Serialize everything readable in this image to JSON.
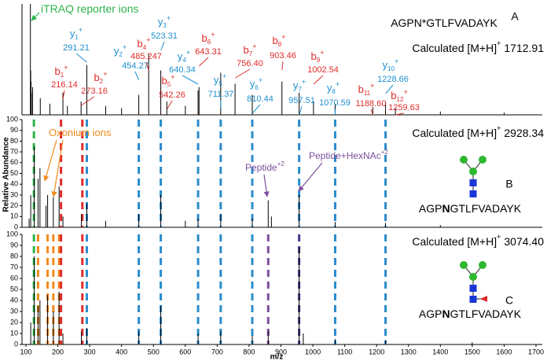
{
  "chart_data": [
    {
      "type": "spectrum",
      "panel_label": "A",
      "color": "#000000",
      "xlim": [
        100,
        1700
      ],
      "ylim": [
        0,
        100
      ],
      "x": [
        114,
        115,
        116,
        117,
        121,
        145,
        175,
        216,
        230,
        273,
        291,
        350,
        400,
        454,
        485,
        523,
        542,
        600,
        640,
        643,
        711,
        756,
        810,
        903,
        957,
        1002,
        1070,
        1188,
        1228,
        1259,
        1400,
        1600
      ],
      "values": [
        100,
        40,
        30,
        20,
        25,
        15,
        10,
        20,
        8,
        12,
        45,
        8,
        6,
        18,
        55,
        40,
        12,
        8,
        22,
        25,
        38,
        28,
        18,
        30,
        20,
        12,
        10,
        7,
        12,
        6,
        3,
        2
      ],
      "sequence": [
        "AGPN*GTLFVADAYK"
      ],
      "calculated": {
        "label": "Calculated [M+H]",
        "charge": "+",
        "mass": 1712.91
      },
      "annotations": [
        {
          "text": "iTRAQ reporter ions",
          "color": "#2db34a"
        }
      ],
      "ions": [
        {
          "ion": "b",
          "sub": "1",
          "sup": "+",
          "mz": 216.14,
          "color": "#e02a2a"
        },
        {
          "ion": "y",
          "sub": "1",
          "sup": "+",
          "mz": 291.21,
          "color": "#1e8fd0"
        },
        {
          "ion": "b",
          "sub": "2",
          "sup": "+",
          "mz": 273.16,
          "color": "#e02a2a"
        },
        {
          "ion": "y",
          "sub": "2",
          "sup": "+",
          "mz": 454.27,
          "color": "#1e8fd0"
        },
        {
          "ion": "b",
          "sub": "4",
          "sup": "+",
          "mz": 485.247,
          "color": "#e02a2a"
        },
        {
          "ion": "y",
          "sub": "3",
          "sup": "+",
          "mz": 523.31,
          "color": "#1e8fd0"
        },
        {
          "ion": "b",
          "sub": "5",
          "sup": "+",
          "mz": 542.26,
          "color": "#e02a2a"
        },
        {
          "ion": "y",
          "sub": "4",
          "sup": "+",
          "mz": 640.34,
          "color": "#1e8fd0"
        },
        {
          "ion": "b",
          "sub": "6",
          "sup": "+",
          "mz": 643.31,
          "color": "#e02a2a"
        },
        {
          "ion": "y",
          "sub": "5",
          "sup": "+",
          "mz": 711.37,
          "color": "#1e8fd0"
        },
        {
          "ion": "b",
          "sub": "7",
          "sup": "+",
          "mz": {
            "value": 756.4,
            "label": "756.40"
          },
          "color": "#e02a2a"
        },
        {
          "ion": "y",
          "sub": "6",
          "sup": "+",
          "mz": 810.44,
          "color": "#1e8fd0"
        },
        {
          "ion": "b",
          "sub": "8",
          "sup": "+",
          "mz": 903.46,
          "color": "#e02a2a"
        },
        {
          "ion": "y",
          "sub": "7",
          "sup": "+",
          "mz": 957.51,
          "color": "#1e8fd0"
        },
        {
          "ion": "b",
          "sub": "9",
          "sup": "+",
          "mz": 1002.54,
          "color": "#e02a2a"
        },
        {
          "ion": "y",
          "sub": "8",
          "sup": "+",
          "mz": 1070.59,
          "color": "#1e8fd0"
        },
        {
          "ion": "b",
          "sub": "11",
          "sup": "+",
          "mz": {
            "value": 1188.6,
            "label": "1188.60"
          },
          "color": "#e02a2a"
        },
        {
          "ion": "y",
          "sub": "10",
          "sup": "+",
          "mz": 1228.66,
          "color": "#1e8fd0"
        },
        {
          "ion": "b",
          "sub": "12",
          "sup": "+",
          "mz": 1259.63,
          "color": "#e02a2a"
        }
      ]
    },
    {
      "type": "spectrum",
      "panel_label": "B",
      "color": "#000000",
      "xlim": [
        100,
        1700
      ],
      "ylim": [
        0,
        100
      ],
      "yticks": [
        0,
        10,
        20,
        30,
        40,
        50,
        60,
        70,
        80,
        90,
        100
      ],
      "ylabel": "Relative Abundance",
      "x": [
        110,
        115,
        126,
        138,
        144,
        163,
        168,
        186,
        204,
        216,
        274,
        291,
        350,
        454,
        523,
        600,
        640,
        711,
        810,
        860,
        870,
        957,
        1070,
        1228,
        1400
      ],
      "values": [
        8,
        30,
        75,
        45,
        55,
        20,
        30,
        28,
        38,
        10,
        12,
        22,
        6,
        12,
        30,
        6,
        8,
        12,
        8,
        25,
        10,
        30,
        5,
        4,
        2
      ],
      "sequence": [
        "AGP",
        "N",
        "GTLFVADAYK"
      ],
      "calculated": {
        "label": "Calculated [M+H]",
        "charge": "+",
        "mass": 2928.34
      },
      "annotations": [
        {
          "text": "Oxonium ions",
          "color": "#f08a1c"
        },
        {
          "text": "Peptide",
          "sup": "+2",
          "color": "#7b4f9d"
        },
        {
          "text": "Peptide+HexNAc",
          "sup": "+2",
          "color": "#7b4f9d"
        }
      ],
      "markers": [
        {
          "x": 125,
          "color": "#2db34a"
        },
        {
          "x": 210,
          "color": "#e02a2a"
        },
        {
          "x": 277,
          "color": "#e02a2a"
        },
        {
          "x": 291,
          "color": "#2a8ccc"
        },
        {
          "x": 454,
          "color": "#2a8ccc"
        },
        {
          "x": 523,
          "color": "#2a8ccc"
        },
        {
          "x": 640,
          "color": "#2a8ccc"
        },
        {
          "x": 711,
          "color": "#2a8ccc"
        },
        {
          "x": 810,
          "color": "#2a8ccc"
        },
        {
          "x": 957,
          "color": "#2a8ccc"
        },
        {
          "x": 1070,
          "color": "#2a8ccc"
        },
        {
          "x": 1228,
          "color": "#2a8ccc"
        }
      ]
    },
    {
      "type": "spectrum",
      "panel_label": "C",
      "color": "#000000",
      "xlim": [
        100,
        1700
      ],
      "ylim": [
        0,
        100
      ],
      "yticks": [
        0,
        10,
        20,
        30,
        40,
        50,
        60,
        70,
        80,
        90,
        100
      ],
      "xticks": [
        100,
        200,
        300,
        400,
        500,
        600,
        700,
        800,
        900,
        1000,
        1100,
        1200,
        1300,
        1400,
        1500,
        1600,
        1700
      ],
      "xlabel": "m/z",
      "x": [
        115,
        126,
        138,
        144,
        168,
        186,
        204,
        216,
        274,
        291,
        454,
        523,
        640,
        711,
        810,
        860,
        957,
        970,
        1070,
        1228,
        1500
      ],
      "values": [
        20,
        80,
        35,
        40,
        45,
        30,
        48,
        10,
        12,
        15,
        12,
        35,
        10,
        12,
        8,
        12,
        88,
        10,
        5,
        4,
        2
      ],
      "sequence": [
        "AGP",
        "N",
        "GTLFVADAYK"
      ],
      "calculated": {
        "label": "Calculated [M+H]",
        "charge": "+",
        "mass": {
          "value": 3074.4,
          "label": "3074.40"
        }
      },
      "markers": [
        {
          "x": 125,
          "color": "#2db34a"
        },
        {
          "x": 138,
          "color": "#f08a1c"
        },
        {
          "x": 168,
          "color": "#f08a1c"
        },
        {
          "x": 186,
          "color": "#f08a1c"
        },
        {
          "x": 204,
          "color": "#f08a1c"
        },
        {
          "x": 210,
          "color": "#e02a2a"
        },
        {
          "x": 277,
          "color": "#e02a2a"
        },
        {
          "x": 291,
          "color": "#2a8ccc"
        },
        {
          "x": 454,
          "color": "#2a8ccc"
        },
        {
          "x": 523,
          "color": "#2a8ccc"
        },
        {
          "x": 640,
          "color": "#2a8ccc"
        },
        {
          "x": 711,
          "color": "#2a8ccc"
        },
        {
          "x": 810,
          "color": "#2a8ccc"
        },
        {
          "x": 860,
          "color": "#7b4f9d"
        },
        {
          "x": 957,
          "color": "#4a3a8a"
        },
        {
          "x": 1070,
          "color": "#2a8ccc"
        },
        {
          "x": 1228,
          "color": "#2a8ccc"
        }
      ]
    }
  ]
}
